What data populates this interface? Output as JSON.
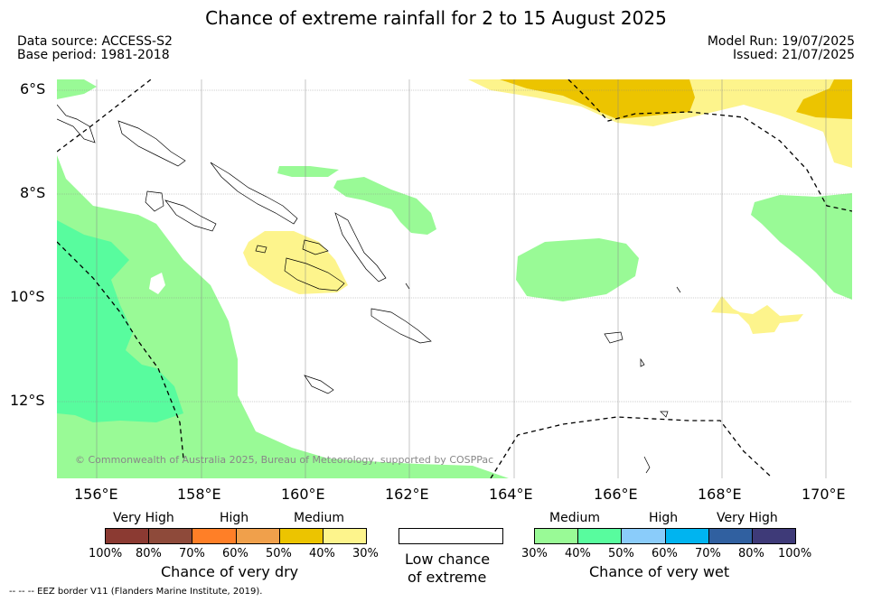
{
  "title": "Chance of extreme rainfall for 2 to 15 August 2025",
  "data_source": "Data source: ACCESS-S2",
  "base_period": "Base period: 1981-2018",
  "model_run": "Model Run: 19/07/2025",
  "issued": "Issued: 21/07/2025",
  "lat_labels": [
    "6°S",
    "8°S",
    "10°S",
    "12°S"
  ],
  "lon_labels": [
    "156°E",
    "158°E",
    "160°E",
    "162°E",
    "164°E",
    "166°E",
    "168°E",
    "170°E"
  ],
  "copyright": "© Commonwealth of Australia 2025, Bureau of Meteorology, supported by COSPPac",
  "dry_legend": {
    "categories": [
      "Very High",
      "High",
      "Medium"
    ],
    "ticks": [
      "100%",
      "80%",
      "70%",
      "60%",
      "50%",
      "40%",
      "30%"
    ],
    "colors": [
      "#8b3a32",
      "#8e4a3a",
      "#ff7f27",
      "#f0a04b",
      "#ecc400",
      "#fdf48c"
    ],
    "title": "Chance of very dry"
  },
  "low_legend": {
    "line1": "Low chance",
    "line2": "of extreme"
  },
  "wet_legend": {
    "categories": [
      "Medium",
      "High",
      "Very High"
    ],
    "ticks": [
      "30%",
      "40%",
      "50%",
      "60%",
      "70%",
      "80%",
      "100%"
    ],
    "colors": [
      "#99fa96",
      "#58fc9e",
      "#8accfa",
      "#00b4f0",
      "#3060a0",
      "#3e3a78"
    ],
    "title": "Chance of very wet"
  },
  "footnote": "--  --  -- EEZ border V11 (Flanders Marine Institute, 2019)."
}
